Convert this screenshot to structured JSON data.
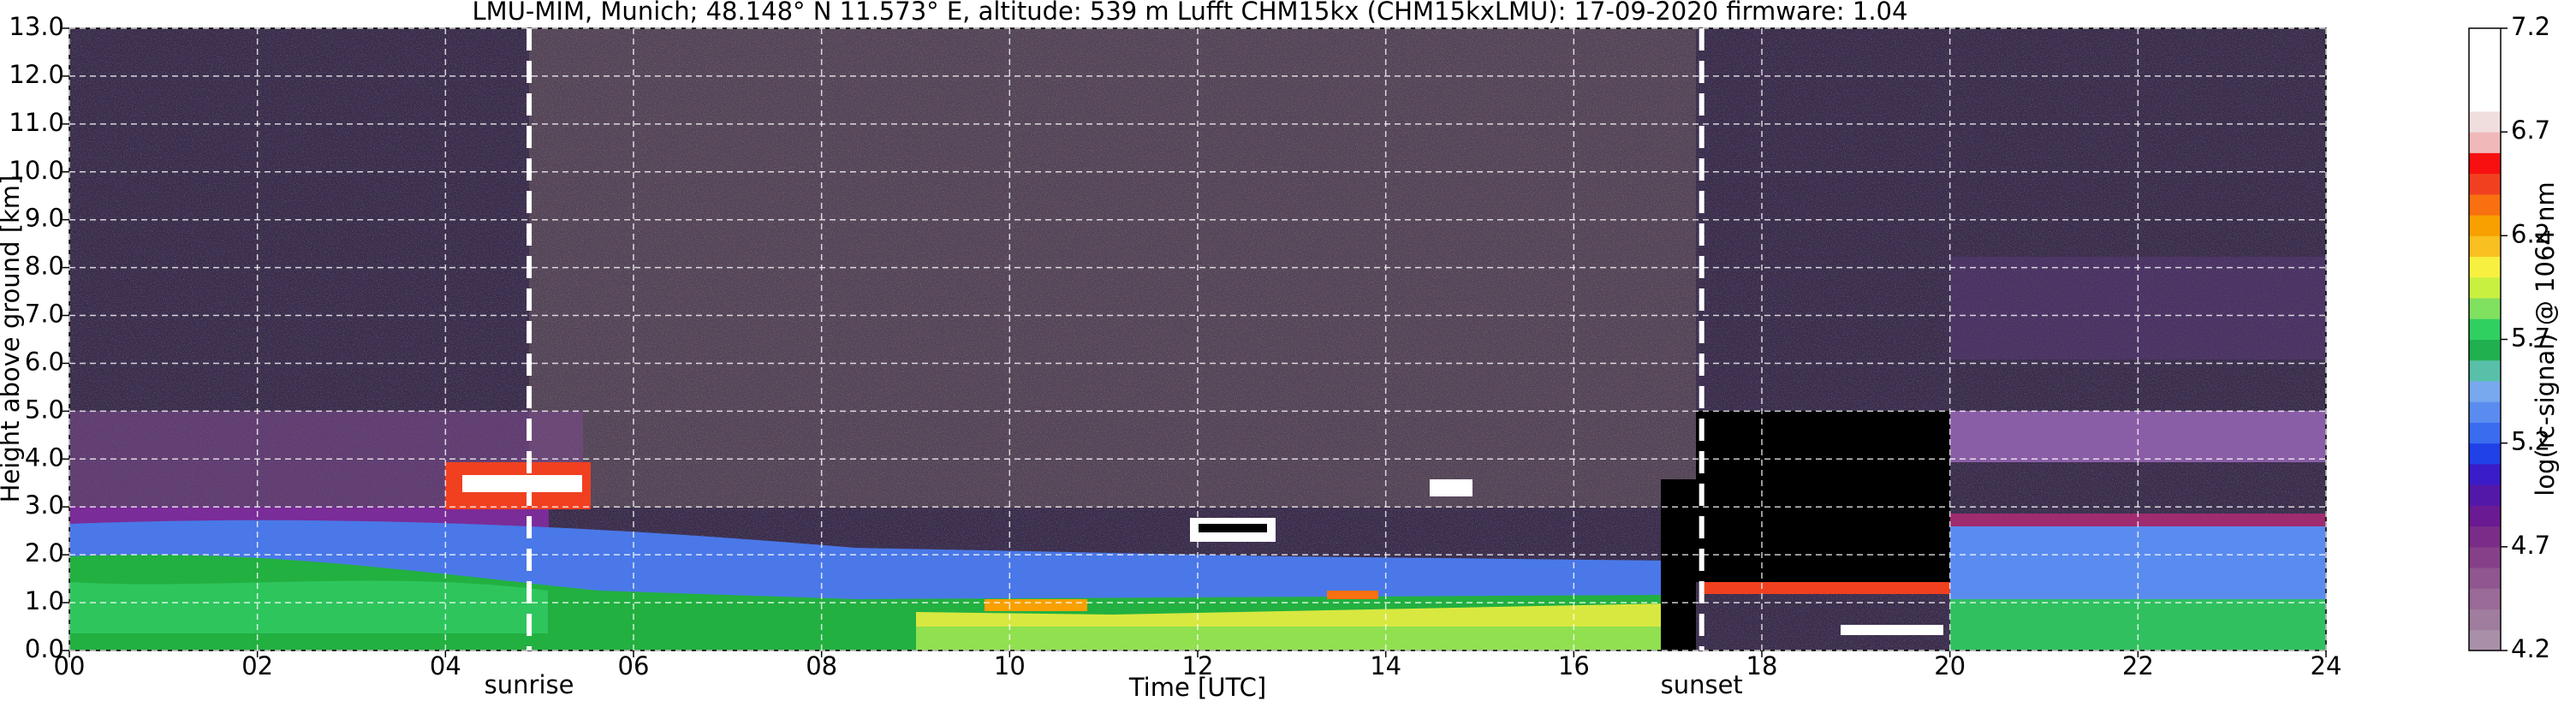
{
  "chart_data": {
    "type": "heatmap",
    "title": "LMU-MIM, Munich; 48.148° N 11.573° E, altitude: 539 m    Lufft CHM15kx (CHM15kxLMU): 17-09-2020    firmware: 1.04",
    "x_label": "Time [UTC]",
    "y_label": "Height above ground [km]",
    "xlim": [
      0,
      24
    ],
    "xticks": [
      {
        "value": 0,
        "label": "00"
      },
      {
        "value": 2,
        "label": "02"
      },
      {
        "value": 4,
        "label": "04"
      },
      {
        "value": 6,
        "label": "06"
      },
      {
        "value": 8,
        "label": "08"
      },
      {
        "value": 10,
        "label": "10"
      },
      {
        "value": 12,
        "label": "12"
      },
      {
        "value": 14,
        "label": "14"
      },
      {
        "value": 16,
        "label": "16"
      },
      {
        "value": 18,
        "label": "18"
      },
      {
        "value": 20,
        "label": "20"
      },
      {
        "value": 22,
        "label": "22"
      },
      {
        "value": 24,
        "label": "24"
      }
    ],
    "ylim": [
      0,
      13
    ],
    "yticks": [
      {
        "value": 0,
        "label": "0.0"
      },
      {
        "value": 1,
        "label": "1.0"
      },
      {
        "value": 2,
        "label": "2.0"
      },
      {
        "value": 3,
        "label": "3.0"
      },
      {
        "value": 4,
        "label": "4.0"
      },
      {
        "value": 5,
        "label": "5.0"
      },
      {
        "value": 6,
        "label": "6.0"
      },
      {
        "value": 7,
        "label": "7.0"
      },
      {
        "value": 8,
        "label": "8.0"
      },
      {
        "value": 9,
        "label": "9.0"
      },
      {
        "value": 10,
        "label": "10.0"
      },
      {
        "value": 11,
        "label": "11.0"
      },
      {
        "value": 12,
        "label": "12.0"
      },
      {
        "value": 13,
        "label": "13.0"
      }
    ],
    "grid": true,
    "annotations": [
      {
        "text": "sunrise",
        "x": 4.89
      },
      {
        "text": "sunset",
        "x": 17.36
      }
    ],
    "colorbar": {
      "label": "log(rc-signal) @ 1064 nm",
      "lim": [
        4.2,
        7.2
      ],
      "ticks": [
        4.2,
        4.7,
        5.2,
        5.7,
        6.2,
        6.7,
        7.2
      ],
      "colors": [
        "#a98fa8",
        "#a07c9f",
        "#9a6a98",
        "#8f5690",
        "#86408a",
        "#7a2c88",
        "#6a1a92",
        "#5418a8",
        "#3a1cc8",
        "#2040e8",
        "#3a6cf0",
        "#5a8cf0",
        "#78a8ee",
        "#58c0a8",
        "#20b050",
        "#30d060",
        "#80e060",
        "#c8f040",
        "#f8f040",
        "#f8c020",
        "#f8a000",
        "#f87010",
        "#f04020",
        "#f81010",
        "#f0b8b8",
        "#f0dede",
        "#ffffff",
        "#ffffff",
        "#ffffff",
        "#ffffff"
      ]
    }
  }
}
